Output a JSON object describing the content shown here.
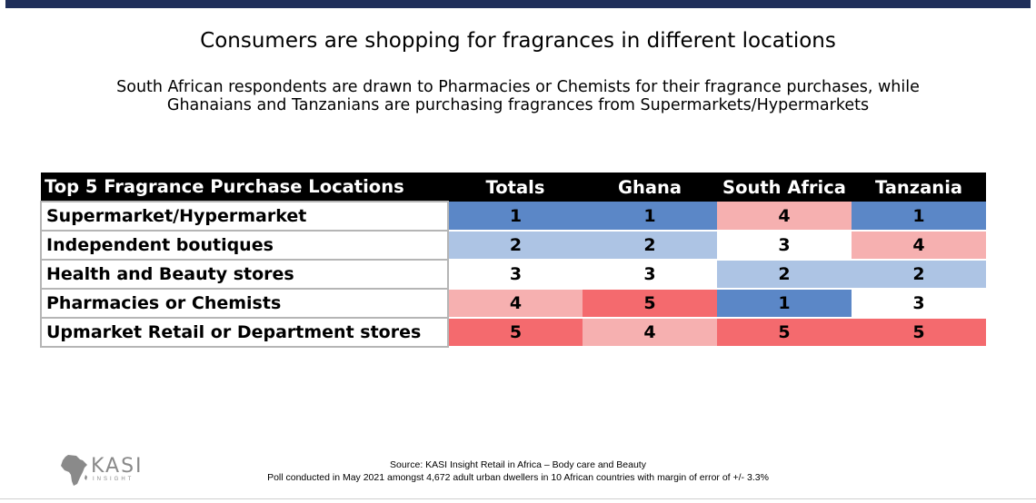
{
  "title": "Consumers are shopping for fragrances in different locations",
  "subtitle_lines": [
    "South African respondents are drawn to Pharmacies or Chemists for their fragrance purchases, while",
    "Ghanaians and Tanzanians are purchasing fragrances from Supermarkets/Hypermarkets"
  ],
  "table": {
    "header_label": "Top 5 Fragrance Purchase Locations",
    "columns": [
      "Totals",
      "Ghana",
      "South Africa",
      "Tanzania"
    ]
  },
  "chart_data": {
    "type": "heatmap",
    "title": "",
    "row_header": "Top 5 Fragrance Purchase Locations",
    "columns": [
      "Totals",
      "Ghana",
      "South Africa",
      "Tanzania"
    ],
    "rows": [
      {
        "label": "Supermarket/Hypermarket",
        "values": [
          1,
          1,
          4,
          1
        ]
      },
      {
        "label": "Independent boutiques",
        "values": [
          2,
          2,
          3,
          4
        ]
      },
      {
        "label": "Health and Beauty stores",
        "values": [
          3,
          3,
          2,
          2
        ]
      },
      {
        "label": "Pharmacies or Chemists",
        "values": [
          4,
          5,
          1,
          3
        ]
      },
      {
        "label": "Upmarket Retail or Department stores",
        "values": [
          5,
          4,
          5,
          5
        ]
      }
    ],
    "value_colors": {
      "1": "#5b87c7",
      "2": "#adc4e4",
      "3": "#ffffff",
      "4": "#f6b0b0",
      "5": "#f46a6e"
    }
  },
  "source": {
    "line1": "Source: KASI Insight Retail in Africa – Body care and Beauty",
    "line2": "Poll conducted in May 2021 amongst 4,672 adult urban dwellers in 10 African countries with margin of error of +/- 3.3%"
  },
  "logo": {
    "text": "KASI",
    "sub": "INSIGHT",
    "color": "#8a8a8a"
  },
  "colors": {
    "top_bar": "#1f2f5a",
    "header_bg": "#000000"
  }
}
